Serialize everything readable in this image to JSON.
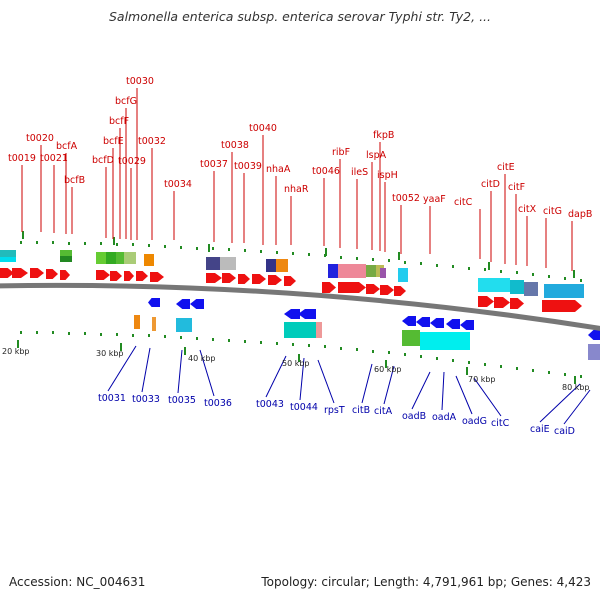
{
  "title": "Salmonella enterica subsp. enterica serovar Typhi str. Ty2, ...",
  "footer": {
    "accession": "Accession: NC_004631",
    "summary": "Topology: circular; Length: 4,791,961 bp; Genes: 4,423"
  },
  "colors": {
    "forward_label": "#cc0000",
    "reverse_label": "#0000aa",
    "forward_gene": "#ee1111",
    "reverse_gene": "#1111ee",
    "backbone": "#777777",
    "tick": "#228b22"
  },
  "kbp_labels": [
    "20 kbp",
    "30 kbp",
    "40 kbp",
    "50 kbp",
    "60 kbp",
    "70 kbp",
    "80 kbp"
  ],
  "forward_labels": [
    "t0019",
    "t0020",
    "t0021",
    "bcfA",
    "bcfB",
    "bcfD",
    "bcfE",
    "bcfF",
    "bcfG",
    "t0030",
    "t0029",
    "t0032",
    "t0034",
    "t0037",
    "t0038",
    "t0039",
    "t0040",
    "nhaA",
    "nhaR",
    "t0046",
    "ribF",
    "ileS",
    "lspA",
    "fkpB",
    "ispH",
    "t0052",
    "yaaF",
    "citC",
    "citD",
    "citE",
    "citF",
    "citX",
    "citG",
    "dapB"
  ],
  "reverse_labels": [
    "t0031",
    "t0033",
    "t0035",
    "t0036",
    "t0043",
    "t0044",
    "rpsT",
    "citB",
    "citA",
    "oadB",
    "oadA",
    "oadG",
    "citC",
    "caiE",
    "caiD"
  ]
}
